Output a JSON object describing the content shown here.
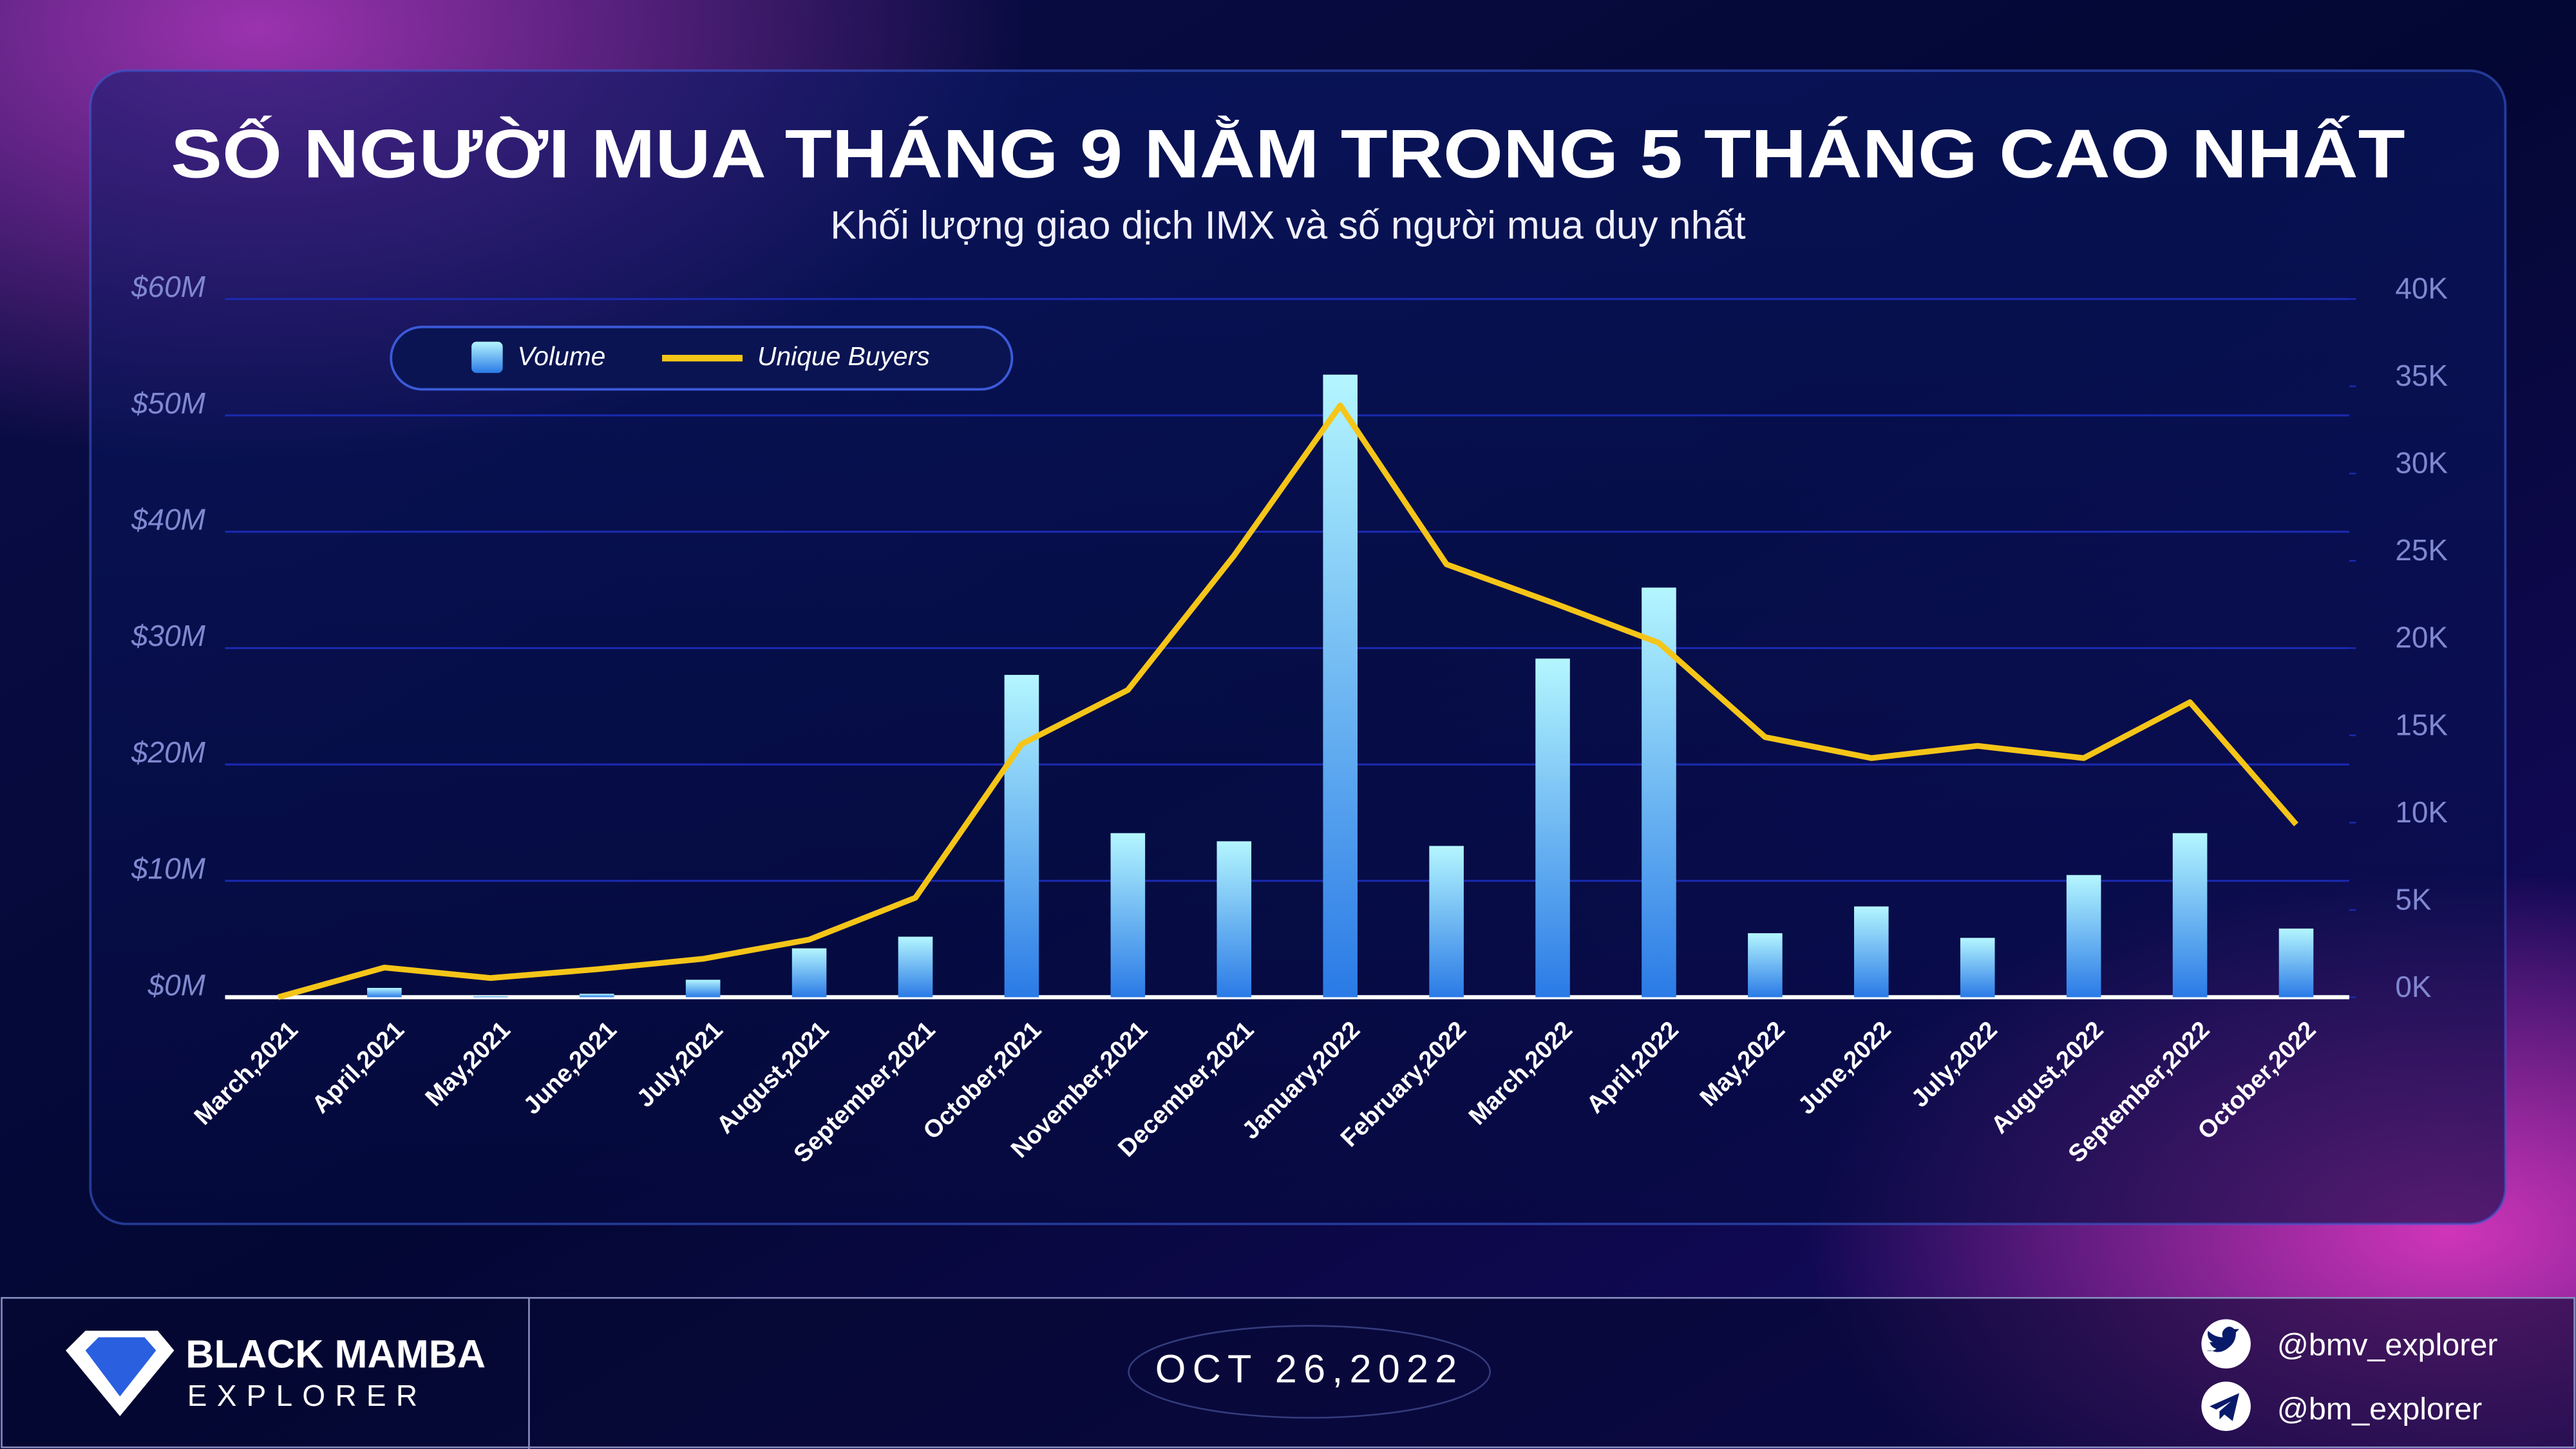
{
  "chart_data": {
    "type": "bar",
    "title": "SỐ NGƯỜI MUA THÁNG 9 NẰM TRONG 5 THÁNG CAO NHẤT",
    "subtitle": "Khối lượng giao dịch IMX và số người mua duy nhất",
    "categories": [
      "March,2021",
      "April,2021",
      "May,2021",
      "June,2021",
      "July,2021",
      "August,2021",
      "September,2021",
      "October,2021",
      "November,2021",
      "December,2021",
      "January,2022",
      "February,2022",
      "March,2022",
      "April,2022",
      "May,2022",
      "June,2022",
      "July,2022",
      "August,2022",
      "September,2022",
      "October,2022"
    ],
    "series": [
      {
        "name": "Volume",
        "type": "bar",
        "color": "#3a9cf0",
        "values": [
          0,
          0.8,
          0.1,
          0.3,
          1.5,
          4.2,
          5.2,
          27.7,
          14.1,
          13.4,
          53.5,
          13.0,
          29.1,
          35.2,
          5.5,
          7.8,
          5.1,
          10.5,
          14.1,
          5.9
        ]
      },
      {
        "name": "Unique Buyers",
        "type": "line",
        "axis": "y2",
        "color": "#f5c518",
        "values": [
          0,
          1.7,
          1.1,
          1.6,
          2.2,
          3.3,
          5.7,
          14.5,
          17.6,
          25.3,
          33.9,
          24.8,
          22.6,
          20.3,
          14.9,
          13.7,
          14.4,
          13.7,
          16.9,
          9.9
        ]
      }
    ],
    "ylim": [
      0,
      60
    ],
    "yticks": [
      {
        "value": 0,
        "label": "$0M"
      },
      {
        "value": 10,
        "label": "$10M"
      },
      {
        "value": 20,
        "label": "$20M"
      },
      {
        "value": 30,
        "label": "$30M"
      },
      {
        "value": 40,
        "label": "$40M"
      },
      {
        "value": 50,
        "label": "$50M"
      },
      {
        "value": 60,
        "label": "$60M"
      }
    ],
    "y2lim": [
      0,
      40
    ],
    "y2ticks": [
      {
        "value": 0,
        "label": "0K"
      },
      {
        "value": 5,
        "label": "5K"
      },
      {
        "value": 10,
        "label": "10K"
      },
      {
        "value": 15,
        "label": "15K"
      },
      {
        "value": 20,
        "label": "20K"
      },
      {
        "value": 25,
        "label": "25K"
      },
      {
        "value": 30,
        "label": "30K"
      },
      {
        "value": 35,
        "label": "35K"
      },
      {
        "value": 40,
        "label": "40K"
      }
    ],
    "grid": true,
    "legend": "top-left"
  },
  "footer": {
    "brand": "BLACK MAMBA",
    "brand_sub": "EXPLORER",
    "date": "OCT 26,2022",
    "twitter": "@bmv_explorer",
    "telegram": "@bm_explorer"
  }
}
